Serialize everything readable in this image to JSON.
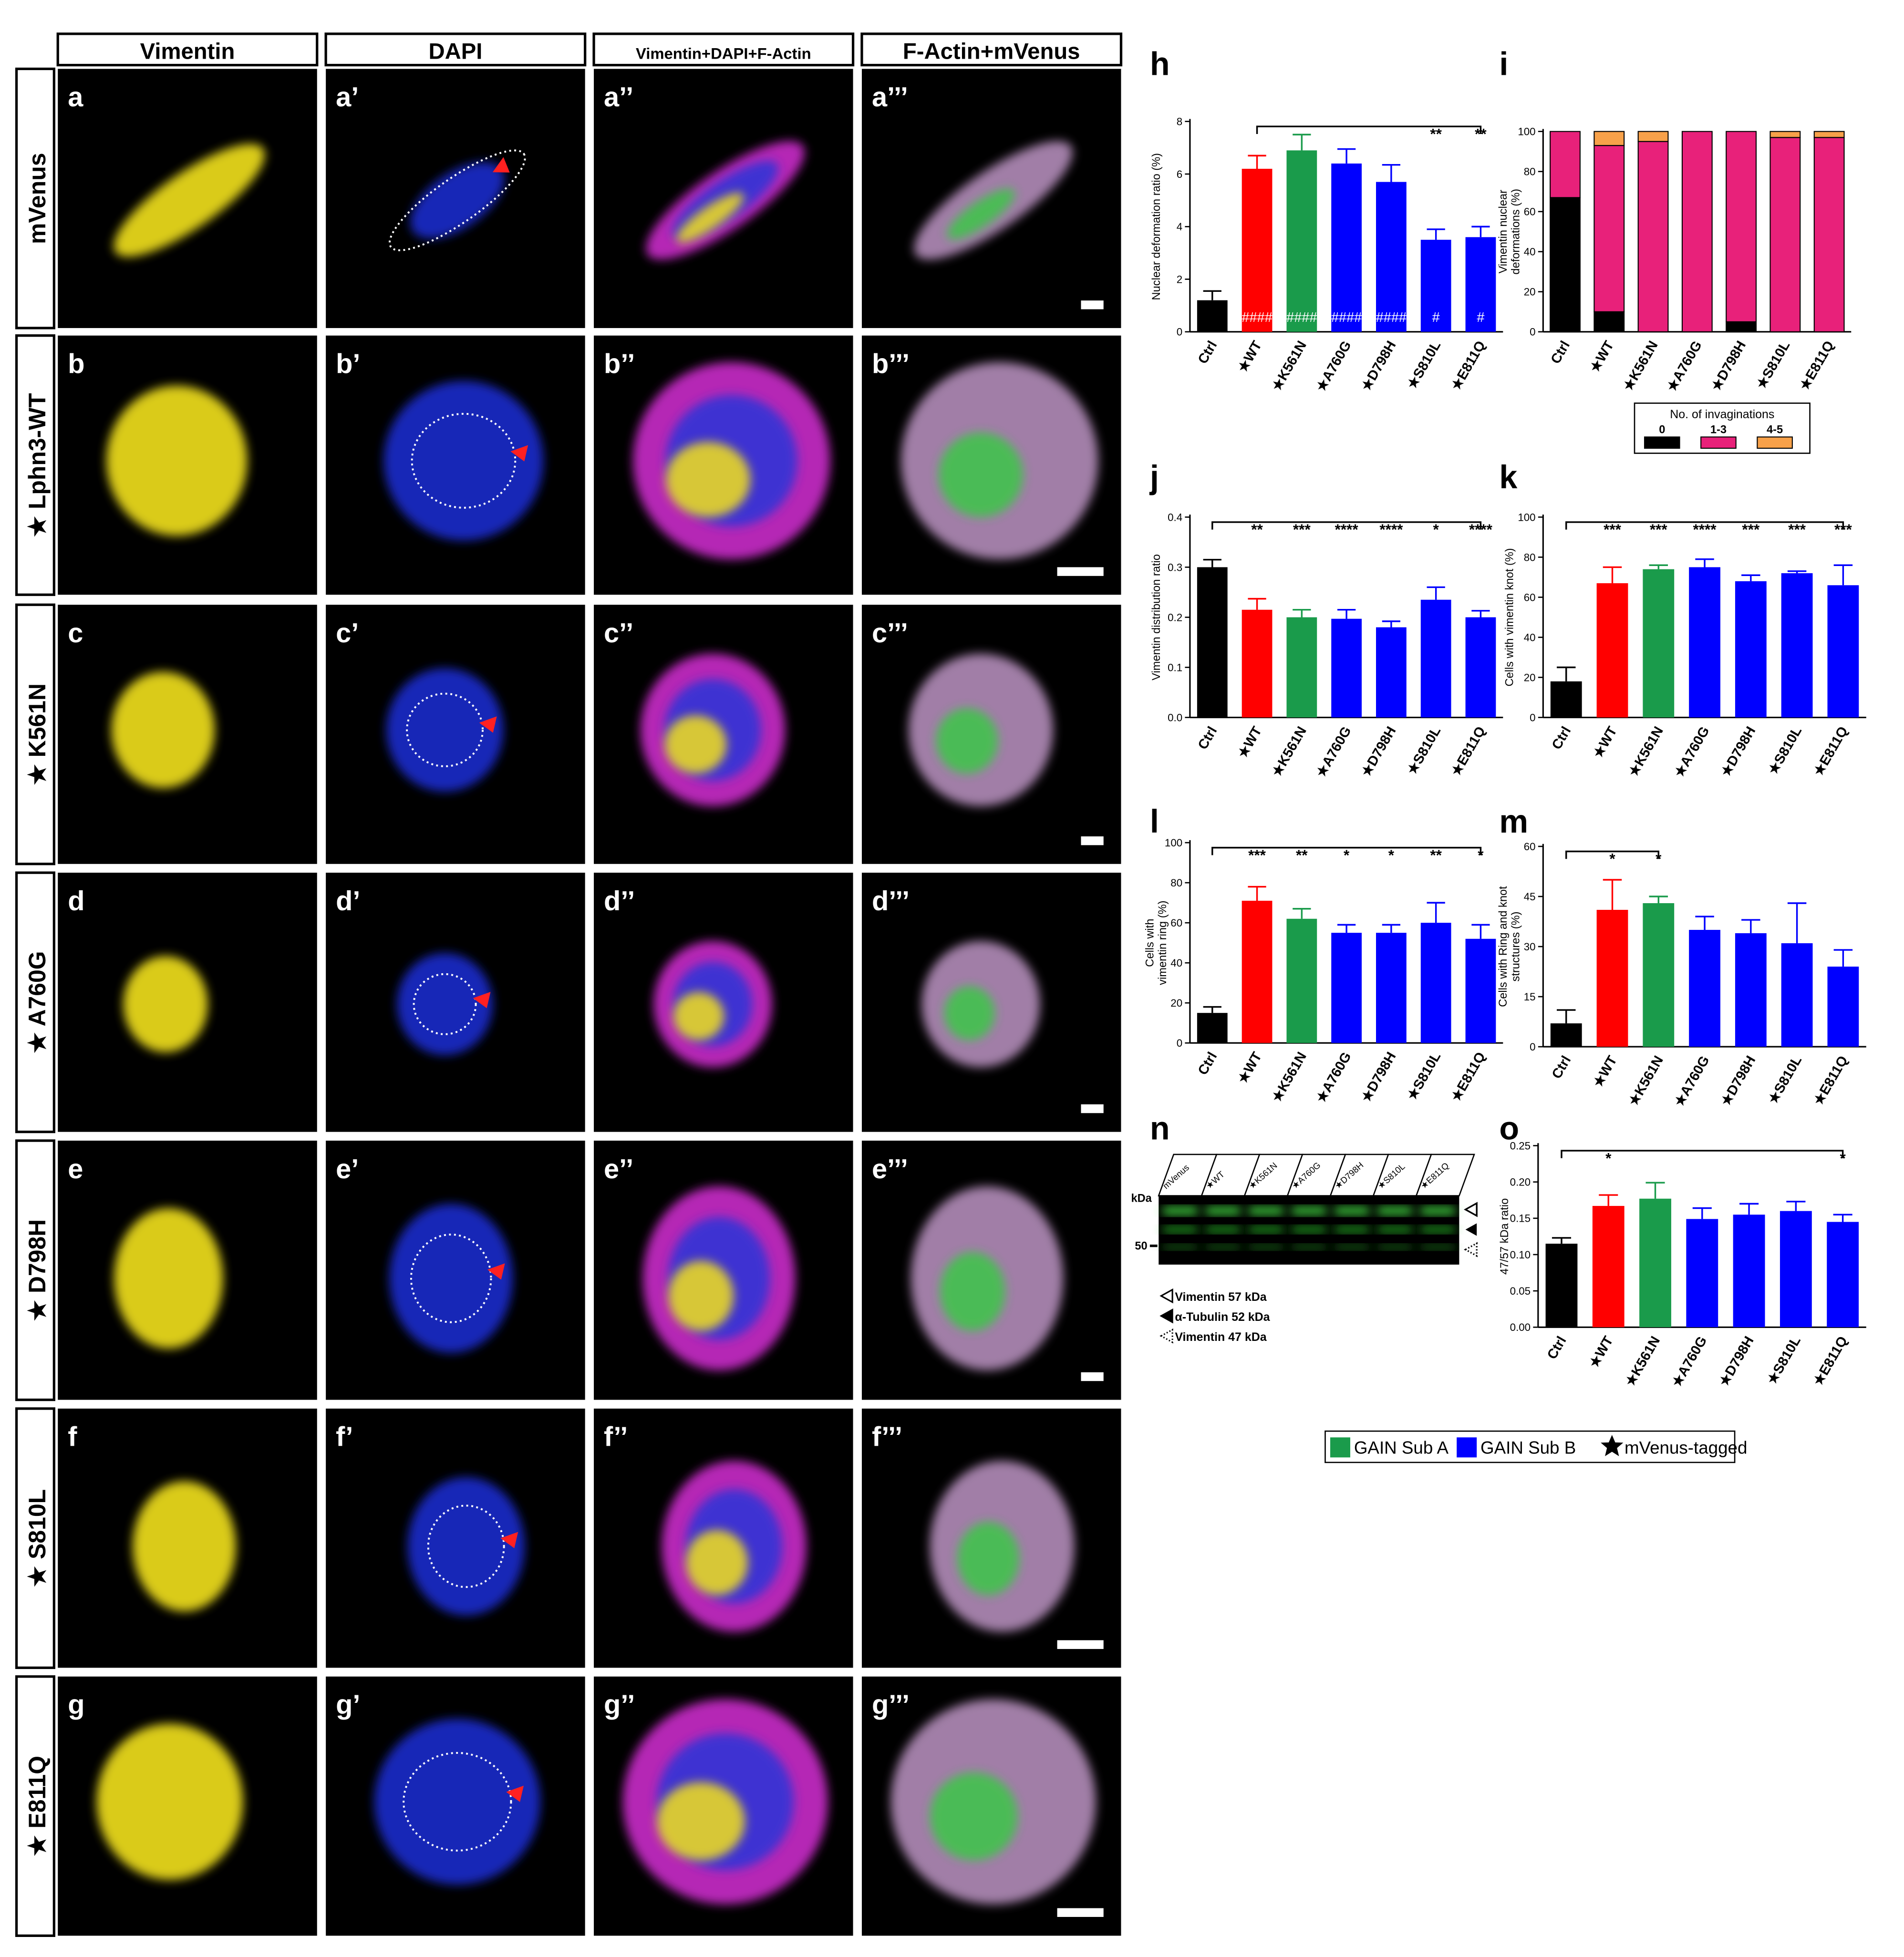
{
  "microscopy": {
    "columns": [
      "Vimentin",
      "DAPI",
      "Vimentin+DAPI+F-Actin",
      "F-Actin+mVenus"
    ],
    "rows": [
      "mVenus",
      "★ Lphn3-WT",
      "★ K561N",
      "★ A760G",
      "★ D798H",
      "★ S810L",
      "★ E811Q"
    ],
    "panels": [
      [
        "a",
        "a’",
        "a’’",
        "a’’’"
      ],
      [
        "b",
        "b’",
        "b’’",
        "b’’’"
      ],
      [
        "c",
        "c’",
        "c’’",
        "c’’’"
      ],
      [
        "d",
        "d’",
        "d’’",
        "d’’’"
      ],
      [
        "e",
        "e’",
        "e’’",
        "e’’’"
      ],
      [
        "f",
        "f’",
        "f’’",
        "f’’’"
      ],
      [
        "g",
        "g’",
        "g’’",
        "g’’’"
      ]
    ]
  },
  "chart_data": [
    {
      "type": "bar",
      "letter": "h",
      "ylabel": [
        "Nuclear deformation ratio (%)"
      ],
      "categories": [
        "Ctrl",
        "★WT",
        "★K561N",
        "★A760G",
        "★D798H",
        "★S810L",
        "★E811Q"
      ],
      "values": [
        1.2,
        6.2,
        6.9,
        6.4,
        5.7,
        3.5,
        3.6
      ],
      "error": [
        0.35,
        0.5,
        0.6,
        0.55,
        0.65,
        0.4,
        0.4
      ],
      "colors": [
        "#000000",
        "#ff0000",
        "#1a9b4b",
        "#0000ff",
        "#0000ff",
        "#0000ff",
        "#0000ff"
      ],
      "ylim": [
        0,
        8
      ],
      "yticks": [
        0,
        2,
        4,
        6,
        8
      ],
      "annotations": [
        null,
        null,
        null,
        null,
        null,
        "**",
        "**"
      ],
      "inner_annotations": [
        null,
        "####",
        "####",
        "####",
        "####",
        "#",
        "#"
      ],
      "bracket": [
        1,
        6
      ]
    },
    {
      "type": "stacked_bar",
      "letter": "i",
      "ylabel": [
        "Vimentin nuclear",
        "deformations (%)"
      ],
      "categories": [
        "Ctrl",
        "★WT",
        "★K561N",
        "★A760G",
        "★D798H",
        "★S810L",
        "★E811Q"
      ],
      "series": [
        {
          "name": "0",
          "color": "#000000",
          "values": [
            67,
            10,
            0,
            0,
            5,
            0,
            0
          ]
        },
        {
          "name": "1-3",
          "color": "#e8217a",
          "values": [
            33,
            83,
            95,
            100,
            95,
            97,
            97
          ]
        },
        {
          "name": "4-5",
          "color": "#f7a14a",
          "values": [
            0,
            7,
            5,
            0,
            0,
            3,
            3
          ]
        }
      ],
      "legend_title": "No. of invaginations",
      "ylim": [
        0,
        100
      ],
      "yticks": [
        0,
        20,
        40,
        60,
        80,
        100
      ]
    },
    {
      "type": "bar",
      "letter": "j",
      "ylabel": [
        "Vimentin distribution ratio"
      ],
      "categories": [
        "Ctrl",
        "★WT",
        "★K561N",
        "★A760G",
        "★D798H",
        "★S810L",
        "★E811Q"
      ],
      "values": [
        0.3,
        0.215,
        0.2,
        0.197,
        0.18,
        0.235,
        0.2
      ],
      "error": [
        0.015,
        0.022,
        0.015,
        0.018,
        0.012,
        0.025,
        0.013
      ],
      "colors": [
        "#000000",
        "#ff0000",
        "#1a9b4b",
        "#0000ff",
        "#0000ff",
        "#0000ff",
        "#0000ff"
      ],
      "ylim": [
        0,
        0.4
      ],
      "yticks": [
        {
          "value": 0,
          "label": "0.0"
        },
        0.1,
        0.2,
        0.3,
        0.4
      ],
      "annotations": [
        null,
        "**",
        "***",
        "****",
        "****",
        "*",
        "****"
      ],
      "bracket": [
        0,
        6
      ]
    },
    {
      "type": "bar",
      "letter": "k",
      "ylabel": [
        "Cells with vimentin knot (%)"
      ],
      "categories": [
        "Ctrl",
        "★WT",
        "★K561N",
        "★A760G",
        "★D798H",
        "★S810L",
        "★E811Q"
      ],
      "values": [
        18,
        67,
        74,
        75,
        68,
        72,
        66
      ],
      "error": [
        7,
        8,
        2,
        4,
        3,
        1,
        10
      ],
      "colors": [
        "#000000",
        "#ff0000",
        "#1a9b4b",
        "#0000ff",
        "#0000ff",
        "#0000ff",
        "#0000ff"
      ],
      "ylim": [
        0,
        100
      ],
      "yticks": [
        0,
        20,
        40,
        60,
        80,
        100
      ],
      "annotations": [
        null,
        "***",
        "***",
        "****",
        "***",
        "***",
        "***"
      ],
      "bracket": [
        0,
        6
      ]
    },
    {
      "type": "bar",
      "letter": "l",
      "ylabel": [
        "Cells with",
        "vimentin ring (%)"
      ],
      "categories": [
        "Ctrl",
        "★WT",
        "★K561N",
        "★A760G",
        "★D798H",
        "★S810L",
        "★E811Q"
      ],
      "values": [
        15,
        71,
        62,
        55,
        55,
        60,
        52
      ],
      "error": [
        3,
        7,
        5,
        4,
        4,
        10,
        7
      ],
      "colors": [
        "#000000",
        "#ff0000",
        "#1a9b4b",
        "#0000ff",
        "#0000ff",
        "#0000ff",
        "#0000ff"
      ],
      "ylim": [
        0,
        100
      ],
      "yticks": [
        0,
        20,
        40,
        60,
        80,
        100
      ],
      "annotations": [
        null,
        "***",
        "**",
        "*",
        "*",
        "**",
        "*"
      ],
      "bracket": [
        0,
        6
      ]
    },
    {
      "type": "bar",
      "letter": "m",
      "ylabel": [
        "Cells with Ring and knot",
        "structures (%)"
      ],
      "categories": [
        "Ctrl",
        "★WT",
        "★K561N",
        "★A760G",
        "★D798H",
        "★S810L",
        "★E811Q"
      ],
      "values": [
        7,
        41,
        43,
        35,
        34,
        31,
        24
      ],
      "error": [
        4,
        9,
        2,
        4,
        4,
        12,
        5
      ],
      "colors": [
        "#000000",
        "#ff0000",
        "#1a9b4b",
        "#0000ff",
        "#0000ff",
        "#0000ff",
        "#0000ff"
      ],
      "ylim": [
        0,
        60
      ],
      "yticks": [
        0,
        15,
        30,
        45,
        60
      ],
      "annotations": [
        null,
        "*",
        "*",
        null,
        null,
        null,
        null
      ],
      "bracket": [
        0,
        2
      ]
    },
    {
      "type": "bar",
      "letter": "o",
      "ylabel": [
        "47/57 kDa ratio"
      ],
      "categories": [
        "Ctrl",
        "★WT",
        "★K561N",
        "★A760G",
        "★D798H",
        "★S810L",
        "★E811Q"
      ],
      "values": [
        0.115,
        0.167,
        0.177,
        0.149,
        0.155,
        0.16,
        0.145
      ],
      "error": [
        0.008,
        0.015,
        0.022,
        0.015,
        0.015,
        0.013,
        0.01
      ],
      "colors": [
        "#000000",
        "#ff0000",
        "#1a9b4b",
        "#0000ff",
        "#0000ff",
        "#0000ff",
        "#0000ff"
      ],
      "ylim": [
        0,
        0.25
      ],
      "yticks": [
        {
          "value": 0,
          "label": "0.00"
        },
        {
          "value": 0.05,
          "label": "0.05"
        },
        {
          "value": 0.1,
          "label": "0.10"
        },
        {
          "value": 0.15,
          "label": "0.15"
        },
        {
          "value": 0.2,
          "label": "0.20"
        },
        {
          "value": 0.25,
          "label": "0.25"
        }
      ],
      "annotations": [
        null,
        "*",
        null,
        null,
        null,
        null,
        "*"
      ],
      "bracket": [
        0,
        6
      ]
    }
  ],
  "blot": {
    "letter": "n",
    "lanes": [
      "mVenus",
      "★WT",
      "★K561N",
      "★A760G",
      "★D798H",
      "★S810L",
      "★E811Q"
    ],
    "unit": "kDa",
    "marker": "50",
    "legend": [
      "Vimentin 57 kDa",
      "α-Tubulin 52 kDa",
      "Vimentin 47 kDa"
    ]
  },
  "legend": [
    {
      "label": "GAIN Sub A",
      "color": "#1a9b4b"
    },
    {
      "label": "GAIN Sub B",
      "color": "#0000ff"
    },
    {
      "label": "mVenus-tagged"
    }
  ]
}
